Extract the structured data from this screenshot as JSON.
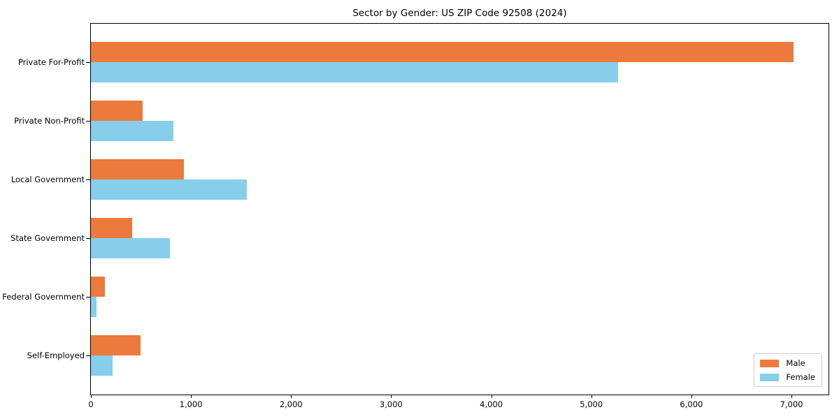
{
  "chart_data": {
    "type": "bar",
    "orientation": "horizontal",
    "title": "Sector by Gender: US ZIP Code 92508 (2024)",
    "categories": [
      "Private For-Profit",
      "Private Non-Profit",
      "Local Government",
      "State Government",
      "Federal Government",
      "Self-Employed"
    ],
    "series": [
      {
        "name": "Male",
        "color": "#EC7A3C",
        "values": [
          7020,
          515,
          930,
          410,
          140,
          495
        ]
      },
      {
        "name": "Female",
        "color": "#87CEEB",
        "values": [
          5270,
          825,
          1560,
          790,
          55,
          215
        ]
      }
    ],
    "xlim": [
      0,
      7370
    ],
    "xtick_values": [
      0,
      1000,
      2000,
      3000,
      4000,
      5000,
      6000,
      7000
    ],
    "xtick_labels": [
      "0",
      "1,000",
      "2,000",
      "3,000",
      "4,000",
      "5,000",
      "6,000",
      "7,000"
    ],
    "ylabel": "",
    "xlabel": "",
    "grid": false,
    "legend": {
      "position": "lower right"
    }
  }
}
